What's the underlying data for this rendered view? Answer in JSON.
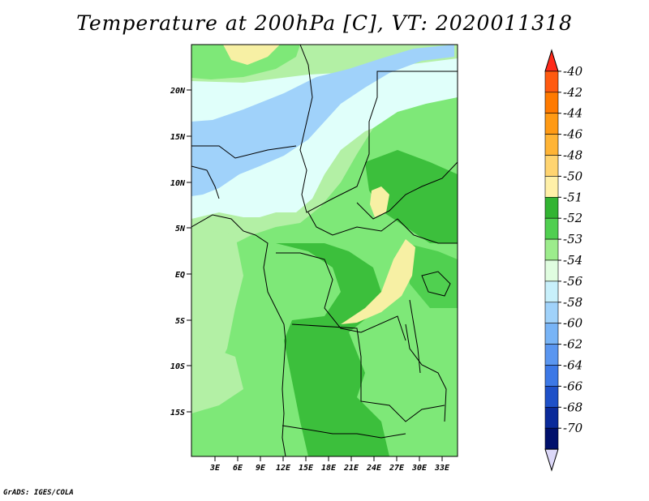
{
  "title": "Temperature at 200hPa [C], VT: 2020011318",
  "credit": "GrADS: IGES/COLA",
  "map": {
    "latitude_labels": [
      "20N",
      "15N",
      "10N",
      "5N",
      "EQ",
      "5S",
      "10S",
      "15S"
    ],
    "longitude_labels": [
      "3E",
      "6E",
      "9E",
      "12E",
      "15E",
      "18E",
      "21E",
      "24E",
      "27E",
      "30E",
      "33E"
    ]
  },
  "colorbar": {
    "labels": [
      "-40",
      "-42",
      "-44",
      "-46",
      "-48",
      "-50",
      "-51",
      "-52",
      "-53",
      "-54",
      "-56",
      "-58",
      "-60",
      "-62",
      "-64",
      "-66",
      "-68",
      "-70"
    ],
    "colors": [
      "#ff2a1a",
      "#ff5a10",
      "#ff7a00",
      "#ff9a14",
      "#ffb435",
      "#ffd470",
      "#fff0a8",
      "#32b432",
      "#50cf50",
      "#9cec8c",
      "#e0fde0",
      "#c8f0fb",
      "#a0d2fa",
      "#78b4f6",
      "#5a96f0",
      "#3c78e6",
      "#1e50c8",
      "#0a2a9a",
      "#00106c",
      "#dcd8f8"
    ]
  },
  "colors": {
    "pale_yellow": "#f7f0a4",
    "light_green": "#b3f0a5",
    "medium_green": "#7ee878",
    "green": "#50d050",
    "dark_green": "#3cbf3c",
    "very_pale_cyan": "#e0fffa",
    "light_blue": "#a0d2fa"
  }
}
